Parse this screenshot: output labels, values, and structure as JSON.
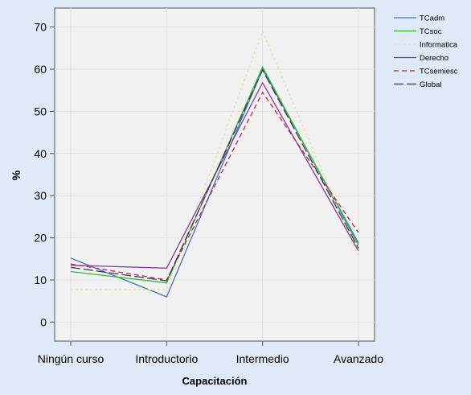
{
  "chart_data": {
    "type": "line",
    "title": "",
    "xlabel": "Capacitación",
    "ylabel": "%",
    "categories": [
      "Ningún curso",
      "Introductorio",
      "Intermedio",
      "Avanzado"
    ],
    "ylim": [
      -4.5,
      74.5
    ],
    "yticks": [
      0,
      10,
      20,
      30,
      40,
      50,
      60,
      70
    ],
    "grid": true,
    "legend_position": "top-right",
    "series": [
      {
        "name": "TCadm",
        "values": [
          15.2,
          6.0,
          60.0,
          18.8
        ],
        "color": "#4a6fc2",
        "dash": "solid"
      },
      {
        "name": "TCsoc",
        "values": [
          12.0,
          9.3,
          60.5,
          18.2
        ],
        "color": "#2fb82f",
        "dash": "solid"
      },
      {
        "name": "Informatica",
        "values": [
          7.7,
          7.7,
          69.0,
          15.6
        ],
        "color": "#e6e0a8",
        "dash": "dotted"
      },
      {
        "name": "Derecho",
        "values": [
          13.5,
          12.8,
          56.8,
          16.9
        ],
        "color": "#8b3a9c",
        "dash": "solid"
      },
      {
        "name": "TCsemiesc",
        "values": [
          13.8,
          10.0,
          54.5,
          21.2
        ],
        "color": "#b03044",
        "dash": "dashed"
      },
      {
        "name": "Global",
        "values": [
          13.0,
          9.8,
          59.8,
          17.5
        ],
        "color": "#3a3f52",
        "dash": "longdash"
      }
    ]
  }
}
